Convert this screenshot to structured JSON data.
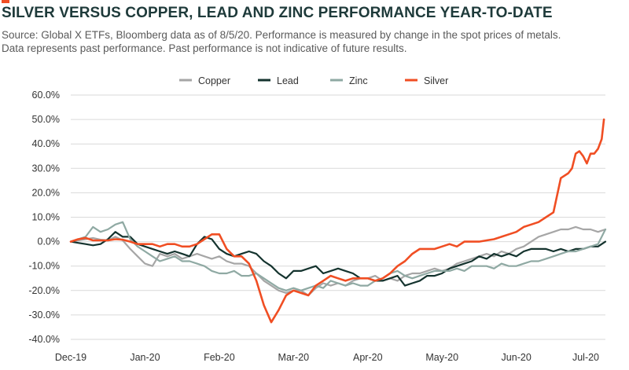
{
  "header": {
    "title": "SILVER VERSUS COPPER, LEAD AND ZINC PERFORMANCE YEAR-TO-DATE",
    "subtitle_line1": "Source: Global X ETFs, Bloomberg data as of 8/5/20. Performance is measured by change in the spot prices of metals.",
    "subtitle_line2": "Data represents past performance. Past performance is not indicative of future results."
  },
  "chart_data": {
    "type": "line",
    "title": "SILVER VERSUS COPPER, LEAD AND ZINC PERFORMANCE YEAR-TO-DATE",
    "xlabel": "",
    "ylabel": "",
    "ylim": [
      -40,
      60
    ],
    "y_ticks": [
      60,
      50,
      40,
      30,
      20,
      10,
      0,
      -10,
      -20,
      -30,
      -40
    ],
    "y_tick_labels": [
      "60.0%",
      "50.0%",
      "40.0%",
      "30.0%",
      "20.0%",
      "10.0%",
      "0.0%",
      "-10.0%",
      "-20.0%",
      "-30.0%",
      "-40.0%"
    ],
    "x_range": [
      0,
      7.2
    ],
    "x_ticks": [
      0,
      1,
      2,
      3,
      4,
      5,
      6,
      7
    ],
    "x_tick_labels": [
      "Dec-19",
      "Jan-20",
      "Feb-20",
      "Mar-20",
      "Apr-20",
      "May-20",
      "Jun-20",
      "Jul-20"
    ],
    "grid": true,
    "legend_position": "top-center",
    "series": [
      {
        "name": "Copper",
        "color": "#a6a6a6",
        "x": [
          0,
          0.1,
          0.2,
          0.3,
          0.4,
          0.5,
          0.6,
          0.7,
          0.8,
          0.9,
          1.0,
          1.1,
          1.2,
          1.3,
          1.4,
          1.5,
          1.6,
          1.7,
          1.8,
          1.9,
          2.0,
          2.1,
          2.2,
          2.3,
          2.4,
          2.5,
          2.6,
          2.7,
          2.8,
          2.9,
          3.0,
          3.1,
          3.2,
          3.3,
          3.4,
          3.5,
          3.6,
          3.7,
          3.8,
          3.9,
          4.0,
          4.1,
          4.2,
          4.3,
          4.4,
          4.5,
          4.6,
          4.7,
          4.8,
          4.9,
          5.0,
          5.1,
          5.2,
          5.3,
          5.4,
          5.5,
          5.6,
          5.7,
          5.8,
          5.9,
          6.0,
          6.1,
          6.2,
          6.3,
          6.4,
          6.5,
          6.6,
          6.7,
          6.8,
          6.9,
          7.0,
          7.1,
          7.2
        ],
        "values": [
          0,
          0.5,
          1,
          1.5,
          0.8,
          0.5,
          2,
          0.5,
          -3,
          -6,
          -9,
          -10,
          -5,
          -6,
          -5,
          -7,
          -6,
          -5,
          -6,
          -7,
          -6,
          -8,
          -9,
          -9,
          -10,
          -13,
          -16,
          -18,
          -20,
          -21,
          -20,
          -20,
          -22,
          -19,
          -17,
          -18,
          -17,
          -18,
          -16,
          -15,
          -15,
          -14,
          -16,
          -15,
          -16,
          -14,
          -13,
          -13,
          -12,
          -11,
          -12,
          -11,
          -9,
          -8,
          -7,
          -6,
          -5,
          -6,
          -4,
          -5,
          -3,
          -2,
          0,
          2,
          3,
          4,
          5,
          5,
          6,
          5,
          5,
          4,
          5
        ]
      },
      {
        "name": "Lead",
        "color": "#14332e",
        "x": [
          0,
          0.1,
          0.2,
          0.3,
          0.4,
          0.5,
          0.6,
          0.7,
          0.8,
          0.9,
          1.0,
          1.1,
          1.2,
          1.3,
          1.4,
          1.5,
          1.6,
          1.7,
          1.8,
          1.9,
          2.0,
          2.1,
          2.2,
          2.3,
          2.4,
          2.5,
          2.6,
          2.7,
          2.8,
          2.9,
          3.0,
          3.1,
          3.2,
          3.3,
          3.4,
          3.5,
          3.6,
          3.7,
          3.8,
          3.9,
          4.0,
          4.1,
          4.2,
          4.3,
          4.4,
          4.5,
          4.6,
          4.7,
          4.8,
          4.9,
          5.0,
          5.1,
          5.2,
          5.3,
          5.4,
          5.5,
          5.6,
          5.7,
          5.8,
          5.9,
          6.0,
          6.1,
          6.2,
          6.3,
          6.4,
          6.5,
          6.6,
          6.7,
          6.8,
          6.9,
          7.0,
          7.1,
          7.2
        ],
        "values": [
          0,
          -0.5,
          -1,
          -1.5,
          -1,
          1,
          4,
          2,
          2,
          -1,
          -2,
          -3,
          -4,
          -5,
          -4,
          -5,
          -6,
          -1,
          2,
          1,
          -3,
          -5,
          -6,
          -5,
          -4,
          -5,
          -8,
          -10,
          -13,
          -15,
          -12,
          -12,
          -11,
          -10,
          -13,
          -12,
          -11,
          -12,
          -13,
          -15,
          -15,
          -16,
          -16,
          -15,
          -14,
          -18,
          -17,
          -16,
          -14,
          -14,
          -13,
          -11,
          -10,
          -9,
          -8,
          -6,
          -7,
          -5,
          -6,
          -5,
          -6,
          -4,
          -3,
          -3,
          -3,
          -4,
          -3,
          -4,
          -3,
          -3,
          -2,
          -2,
          0
        ]
      },
      {
        "name": "Zinc",
        "color": "#8fa9a3",
        "x": [
          0,
          0.1,
          0.2,
          0.3,
          0.4,
          0.5,
          0.6,
          0.7,
          0.8,
          0.9,
          1.0,
          1.1,
          1.2,
          1.3,
          1.4,
          1.5,
          1.6,
          1.7,
          1.8,
          1.9,
          2.0,
          2.1,
          2.2,
          2.3,
          2.4,
          2.5,
          2.6,
          2.7,
          2.8,
          2.9,
          3.0,
          3.1,
          3.2,
          3.3,
          3.4,
          3.5,
          3.6,
          3.7,
          3.8,
          3.9,
          4.0,
          4.1,
          4.2,
          4.3,
          4.4,
          4.5,
          4.6,
          4.7,
          4.8,
          4.9,
          5.0,
          5.1,
          5.2,
          5.3,
          5.4,
          5.5,
          5.6,
          5.7,
          5.8,
          5.9,
          6.0,
          6.1,
          6.2,
          6.3,
          6.4,
          6.5,
          6.6,
          6.7,
          6.8,
          6.9,
          7.0,
          7.1,
          7.2
        ],
        "values": [
          0,
          1,
          2,
          6,
          4,
          5,
          7,
          8,
          1,
          -2,
          -4,
          -6,
          -8,
          -7,
          -6,
          -8,
          -8,
          -9,
          -10,
          -12,
          -13,
          -13,
          -12,
          -14,
          -14,
          -13,
          -15,
          -17,
          -19,
          -20,
          -19,
          -20,
          -19,
          -18,
          -19,
          -16,
          -17,
          -18,
          -17,
          -18,
          -18,
          -16,
          -15,
          -13,
          -12,
          -14,
          -15,
          -14,
          -13,
          -12,
          -12,
          -12,
          -11,
          -12,
          -10,
          -10,
          -10,
          -11,
          -9,
          -10,
          -10,
          -9,
          -8,
          -8,
          -7,
          -6,
          -5,
          -4,
          -4,
          -3,
          -2,
          -1,
          5
        ]
      },
      {
        "name": "Silver",
        "color": "#f04e23",
        "x": [
          0,
          0.1,
          0.2,
          0.3,
          0.4,
          0.5,
          0.6,
          0.7,
          0.8,
          0.9,
          1.0,
          1.1,
          1.2,
          1.3,
          1.4,
          1.5,
          1.6,
          1.7,
          1.8,
          1.9,
          2.0,
          2.1,
          2.2,
          2.3,
          2.4,
          2.5,
          2.6,
          2.7,
          2.8,
          2.9,
          3.0,
          3.1,
          3.2,
          3.3,
          3.4,
          3.5,
          3.6,
          3.7,
          3.8,
          3.9,
          4.0,
          4.1,
          4.2,
          4.3,
          4.4,
          4.5,
          4.6,
          4.7,
          4.8,
          4.9,
          5.0,
          5.1,
          5.2,
          5.3,
          5.4,
          5.5,
          5.6,
          5.7,
          5.8,
          5.9,
          6.0,
          6.1,
          6.2,
          6.3,
          6.4,
          6.5,
          6.6,
          6.7,
          6.75,
          6.8,
          6.85,
          6.9,
          6.95,
          7.0,
          7.05,
          7.1,
          7.15,
          7.18
        ],
        "values": [
          0,
          1,
          1.5,
          0.5,
          0.5,
          0.5,
          1,
          0.8,
          0,
          -1,
          -1,
          -1,
          -2,
          -1,
          -1,
          -2,
          -2,
          -1,
          1,
          3,
          3,
          -3,
          -6,
          -6,
          -9,
          -16,
          -26,
          -33,
          -28,
          -22,
          -20,
          -21,
          -22,
          -18,
          -16,
          -14,
          -15,
          -16,
          -15,
          -15,
          -15,
          -16,
          -15,
          -13,
          -10,
          -8,
          -5,
          -3,
          -3,
          -3,
          -2,
          -1,
          -2,
          0,
          0,
          0,
          0.5,
          1,
          2,
          3,
          4,
          6,
          7,
          8,
          10,
          12,
          26,
          28,
          30,
          36,
          37,
          35,
          32,
          36,
          36,
          38,
          42,
          50
        ]
      }
    ]
  }
}
